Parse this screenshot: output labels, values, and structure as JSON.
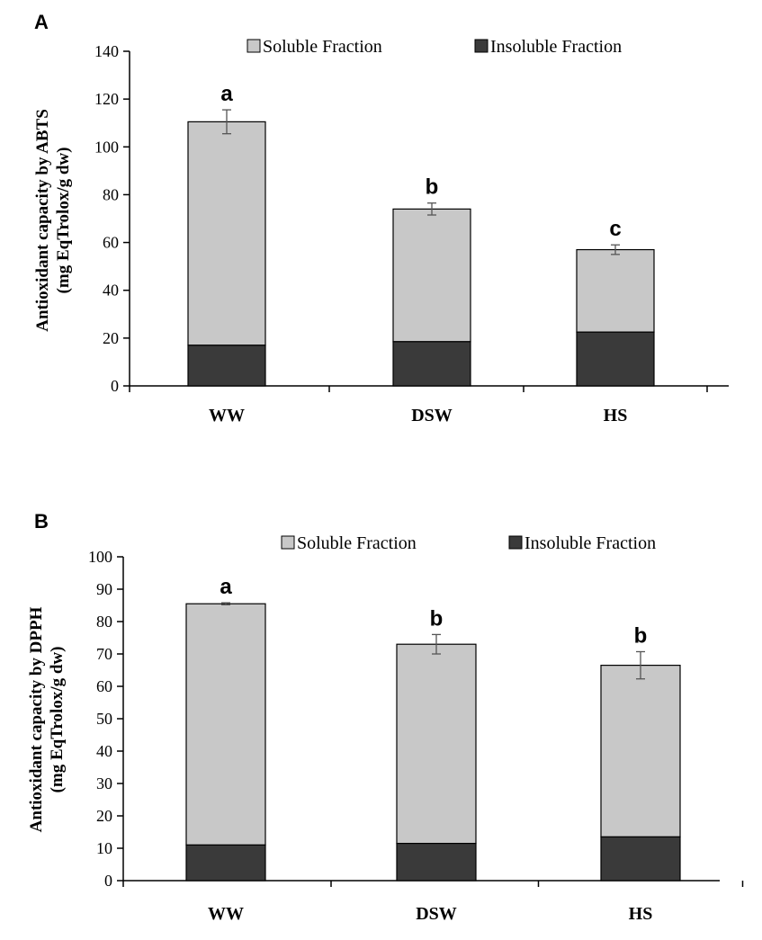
{
  "figure": {
    "panels": [
      "A",
      "B"
    ]
  },
  "colors": {
    "soluble": "#c8c8c8",
    "insoluble": "#3a3a3a",
    "axis": "#000000"
  },
  "chart_data": [
    {
      "type": "bar",
      "stacked": true,
      "panel_label": "A",
      "title": "",
      "ylabel_line1": "Antioxidant   capacity by ABTS",
      "ylabel_line2": "(mg EqTrolox/g dw)",
      "xlabel": "",
      "categories": [
        "WW",
        "DSW",
        "HS"
      ],
      "series": [
        {
          "name": "Insoluble Fraction",
          "values": [
            17,
            18.5,
            22.5
          ]
        },
        {
          "name": "Soluble Fraction",
          "values": [
            93.5,
            55.5,
            34.5
          ]
        }
      ],
      "totals": [
        110.5,
        74,
        57
      ],
      "errors": [
        5,
        2.5,
        2
      ],
      "letters": [
        "a",
        "b",
        "c"
      ],
      "ylim": [
        0,
        140
      ],
      "yticks": [
        0,
        20,
        40,
        60,
        80,
        100,
        120,
        140
      ],
      "legend": [
        "Soluble Fraction",
        "Insoluble Fraction"
      ],
      "legend_position": "top-right"
    },
    {
      "type": "bar",
      "stacked": true,
      "panel_label": "B",
      "title": "",
      "ylabel_line1": "Antioxidant capacity by DPPH",
      "ylabel_line2": "(mg EqTrolox/g dw)",
      "xlabel": "",
      "categories": [
        "WW",
        "DSW",
        "HS"
      ],
      "series": [
        {
          "name": "Insoluble Fraction",
          "values": [
            11,
            11.5,
            13.5
          ]
        },
        {
          "name": "Soluble Fraction",
          "values": [
            74.5,
            61.5,
            53
          ]
        }
      ],
      "totals": [
        85.5,
        73,
        66.5
      ],
      "errors": [
        0.3,
        3,
        4.2
      ],
      "letters": [
        "a",
        "b",
        "b"
      ],
      "ylim": [
        0,
        100
      ],
      "yticks": [
        0,
        10,
        20,
        30,
        40,
        50,
        60,
        70,
        80,
        90,
        100
      ],
      "legend": [
        "Soluble Fraction",
        "Insoluble Fraction"
      ],
      "legend_position": "top-right"
    }
  ]
}
